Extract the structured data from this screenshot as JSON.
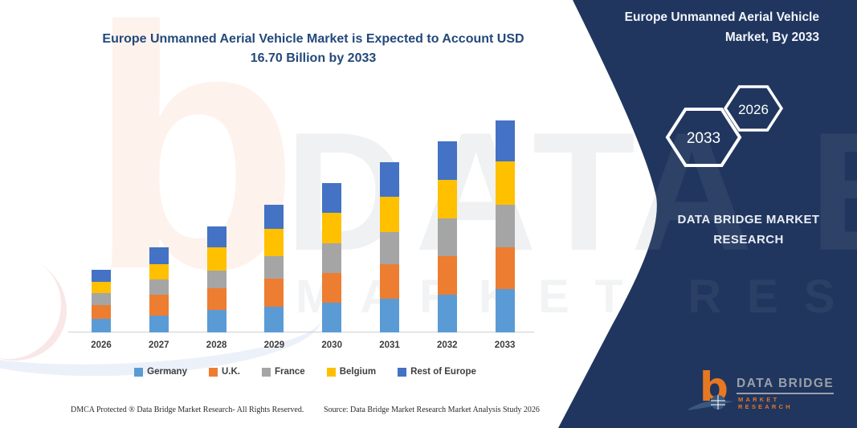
{
  "watermark": {
    "brand_letter": "b",
    "line1": "DATA BRIDGE",
    "line2": "MARKET RESEARCH"
  },
  "chart": {
    "title_lines": [
      "Europe Unmanned Aerial Vehicle Market is Expected to Account USD",
      "16.70 Billion by 2033"
    ],
    "title_color": "#23497B"
  },
  "chart_data": {
    "type": "bar",
    "stacked": true,
    "title": "Europe Unmanned Aerial Vehicle Market is Expected to Account USD 16.70 Billion by 2033",
    "unit": "USD Billion",
    "categories": [
      "2026",
      "2027",
      "2028",
      "2029",
      "2030",
      "2031",
      "2032",
      "2033"
    ],
    "series": [
      {
        "name": "Germany",
        "color": "#5B9BD5",
        "values": [
          1.05,
          1.35,
          1.75,
          2.05,
          2.35,
          2.65,
          3.0,
          3.4
        ]
      },
      {
        "name": "U.K.",
        "color": "#ED7D31",
        "values": [
          1.1,
          1.6,
          1.7,
          2.2,
          2.35,
          2.7,
          3.0,
          3.3
        ]
      },
      {
        "name": "France",
        "color": "#A5A5A5",
        "values": [
          0.95,
          1.2,
          1.45,
          1.75,
          2.35,
          2.55,
          3.0,
          3.35
        ]
      },
      {
        "name": "Belgium",
        "color": "#FFC000",
        "values": [
          0.9,
          1.25,
          1.8,
          2.15,
          2.4,
          2.8,
          3.05,
          3.4
        ]
      },
      {
        "name": "Rest of Europe",
        "color": "#4472C4",
        "values": [
          0.95,
          1.3,
          1.65,
          1.9,
          2.3,
          2.7,
          3.0,
          3.25
        ]
      }
    ],
    "totals": [
      4.95,
      6.7,
      8.35,
      10.05,
      11.75,
      13.4,
      15.05,
      16.7
    ],
    "ylim": [
      0,
      16.7
    ],
    "grid": false,
    "legend_position": "bottom",
    "xlabel": "",
    "ylabel": ""
  },
  "panel": {
    "bg_color": "#20365F",
    "title_lines": [
      "Europe Unmanned Aerial Vehicle",
      "Market, By 2033"
    ],
    "hexagons": [
      {
        "label": "2033"
      },
      {
        "label": "2026"
      }
    ],
    "brand_text": "DATA BRIDGE MARKET RESEARCH"
  },
  "logo": {
    "name": "DATA BRIDGE",
    "subtitle": "MARKET RESEARCH"
  },
  "footer": {
    "dmca": "DMCA Protected ® Data Bridge Market Research- All Rights Reserved.",
    "source": "Source: Data Bridge Market Research Market Analysis Study 2026"
  }
}
